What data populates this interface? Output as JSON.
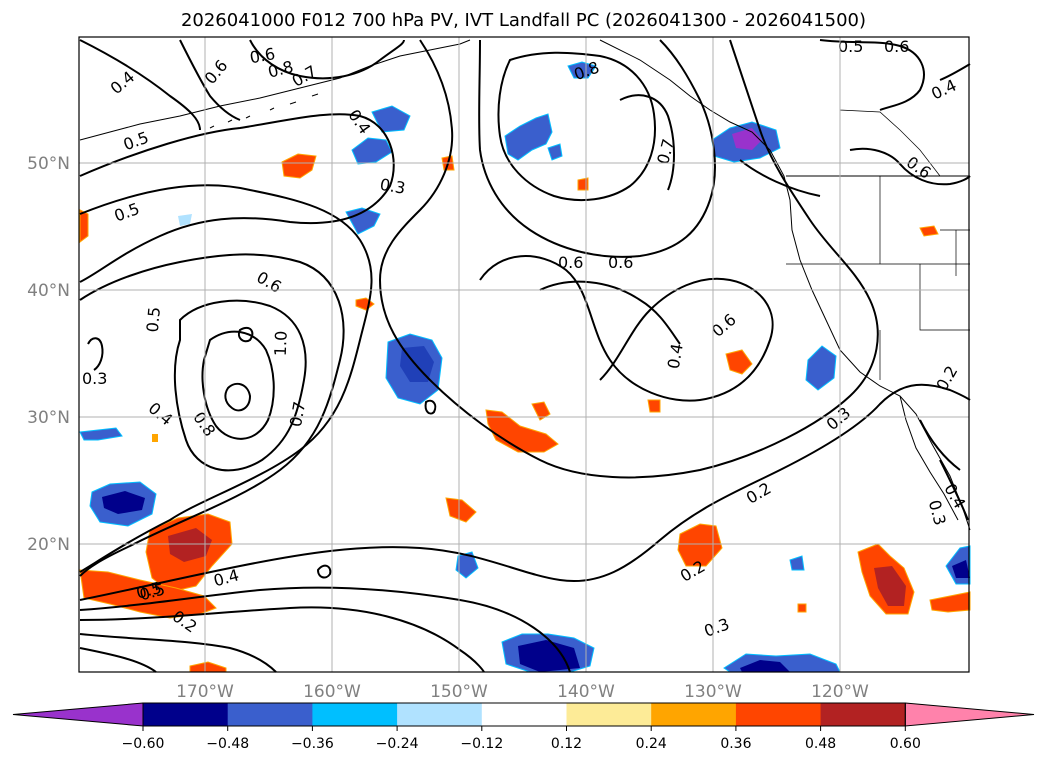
{
  "title": "2026041000 F012 700 hPa PV, IVT Landfall PC (2026041300 - 2026041500)",
  "lon_labels": [
    "170°W",
    "160°W",
    "150°W",
    "140°W",
    "130°W",
    "120°W"
  ],
  "lat_labels": [
    "50°N",
    "40°N",
    "30°N",
    "20°N"
  ],
  "colorbar": {
    "colors": [
      "#9932cc",
      "#00008b",
      "#3a5fcd",
      "#00bfff",
      "#b0e2ff",
      "#ffffff",
      "#fdeb97",
      "#ffa500",
      "#ff4500",
      "#b22222",
      "#ff82ab"
    ],
    "tick_labels": [
      "−0.60",
      "−0.48",
      "−0.36",
      "−0.24",
      "−0.12",
      "0.12",
      "0.24",
      "0.36",
      "0.48",
      "0.60"
    ]
  },
  "contour_labels": [
    "0.4",
    "0.6",
    "0.8",
    "0.7",
    "0.5",
    "0.5",
    "0.6",
    "0.3",
    "0.4",
    "0.8",
    "0.7",
    "0.5",
    "0.5",
    "0.4",
    "0.6",
    "0.6",
    "0.6",
    "0.6",
    "0.5",
    "0.3",
    "1.0",
    "0.7",
    "0.4",
    "0.8",
    "0.4",
    "0.6",
    "0.3",
    "0.2",
    "0.3",
    "0.4",
    "0.2",
    "0.2",
    "0.5",
    "0.4",
    "0.2",
    "0.3",
    "0.6"
  ]
}
